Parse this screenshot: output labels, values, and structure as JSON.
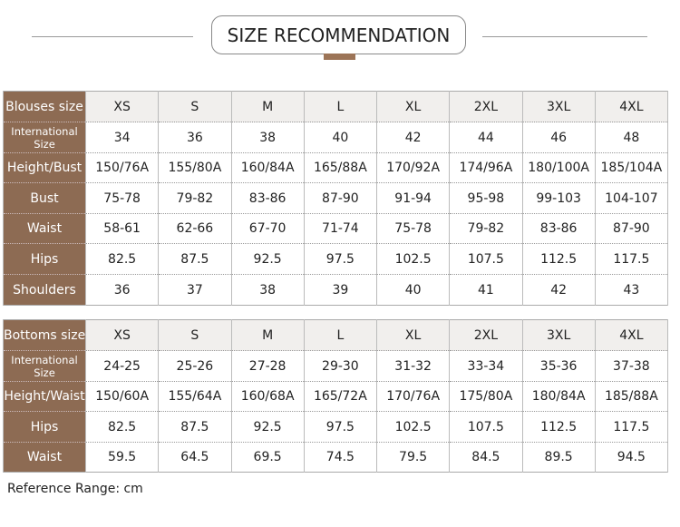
{
  "title": "SIZE RECOMMENDATION",
  "colors": {
    "label_bg": "#8d6b53",
    "header_bg": "#f1efed",
    "accent": "#9c7457"
  },
  "tables": [
    {
      "rows": [
        [
          "Blouses size",
          "XS",
          "S",
          "M",
          "L",
          "XL",
          "2XL",
          "3XL",
          "4XL"
        ],
        [
          "International Size",
          "34",
          "36",
          "38",
          "40",
          "42",
          "44",
          "46",
          "48"
        ],
        [
          "Height/Bust",
          "150/76A",
          "155/80A",
          "160/84A",
          "165/88A",
          "170/92A",
          "174/96A",
          "180/100A",
          "185/104A"
        ],
        [
          "Bust",
          "75-78",
          "79-82",
          "83-86",
          "87-90",
          "91-94",
          "95-98",
          "99-103",
          "104-107"
        ],
        [
          "Waist",
          "58-61",
          "62-66",
          "67-70",
          "71-74",
          "75-78",
          "79-82",
          "83-86",
          "87-90"
        ],
        [
          "Hips",
          "82.5",
          "87.5",
          "92.5",
          "97.5",
          "102.5",
          "107.5",
          "112.5",
          "117.5"
        ],
        [
          "Shoulders",
          "36",
          "37",
          "38",
          "39",
          "40",
          "41",
          "42",
          "43"
        ]
      ]
    },
    {
      "rows": [
        [
          "Bottoms size",
          "XS",
          "S",
          "M",
          "L",
          "XL",
          "2XL",
          "3XL",
          "4XL"
        ],
        [
          "International Size",
          "24-25",
          "25-26",
          "27-28",
          "29-30",
          "31-32",
          "33-34",
          "35-36",
          "37-38"
        ],
        [
          "Height/Waist",
          "150/60A",
          "155/64A",
          "160/68A",
          "165/72A",
          "170/76A",
          "175/80A",
          "180/84A",
          "185/88A"
        ],
        [
          "Hips",
          "82.5",
          "87.5",
          "92.5",
          "97.5",
          "102.5",
          "107.5",
          "112.5",
          "117.5"
        ],
        [
          "Waist",
          "59.5",
          "64.5",
          "69.5",
          "74.5",
          "79.5",
          "84.5",
          "89.5",
          "94.5"
        ]
      ]
    }
  ],
  "footer": "Reference Range: cm"
}
